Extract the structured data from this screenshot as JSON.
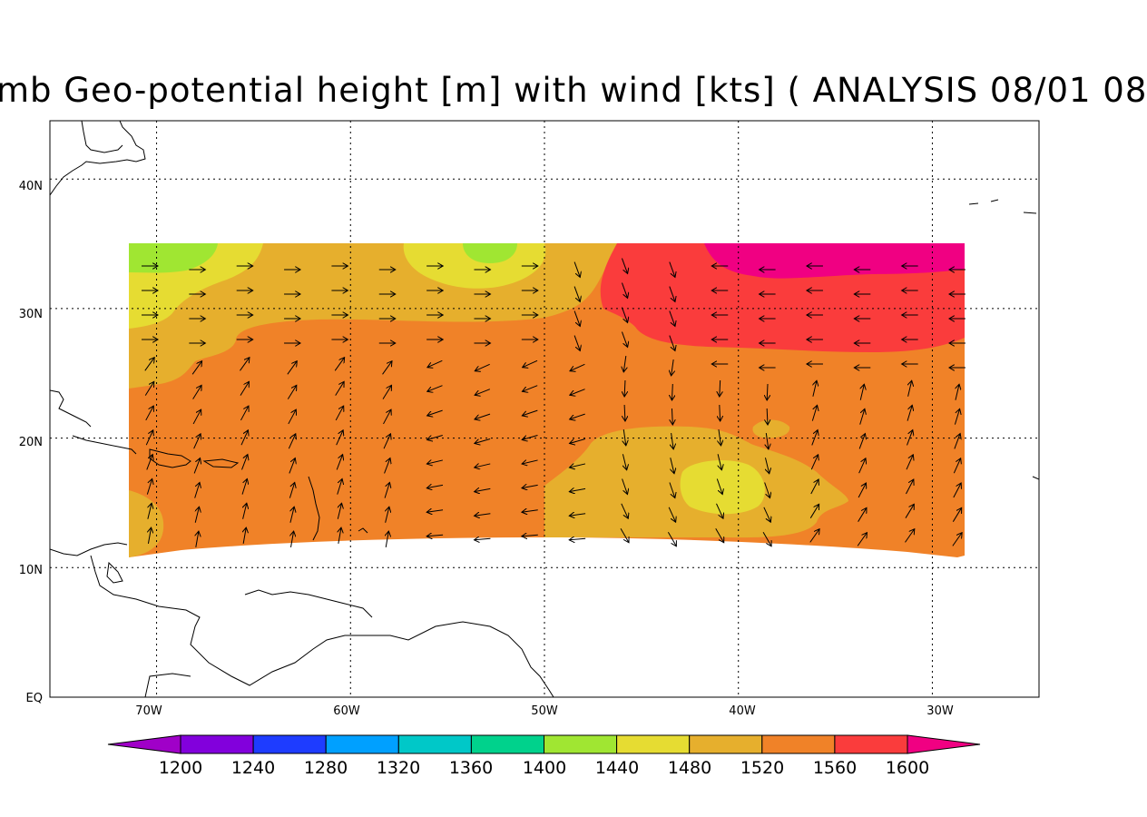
{
  "title": "mb Geo-potential height [m] with wind [kts] ( ANALYSIS 08/01 08",
  "axes": {
    "lon_labels": [
      "70W",
      "60W",
      "50W",
      "40W",
      "30W"
    ],
    "lat_labels": [
      "40N",
      "30N",
      "20N",
      "10N",
      "EQ"
    ]
  },
  "colorbar": {
    "labels": [
      "1200",
      "1240",
      "1280",
      "1320",
      "1360",
      "1400",
      "1440",
      "1480",
      "1520",
      "1560",
      "1600"
    ],
    "colors": [
      "#a000c8",
      "#8200dc",
      "#1e3cff",
      "#00a0ff",
      "#00c8c8",
      "#00d28c",
      "#a0e632",
      "#e6dc32",
      "#e6af2d",
      "#f08228",
      "#fa3c3c",
      "#f00082"
    ]
  },
  "map": {
    "projection": "lat-lon",
    "lon_range": [
      -75.5,
      -24.5
    ],
    "lat_range": [
      0,
      44.5
    ],
    "grid": "dotted",
    "field_lon_range": [
      -71,
      -29
    ],
    "field_lat_range": [
      11,
      35.5
    ]
  }
}
